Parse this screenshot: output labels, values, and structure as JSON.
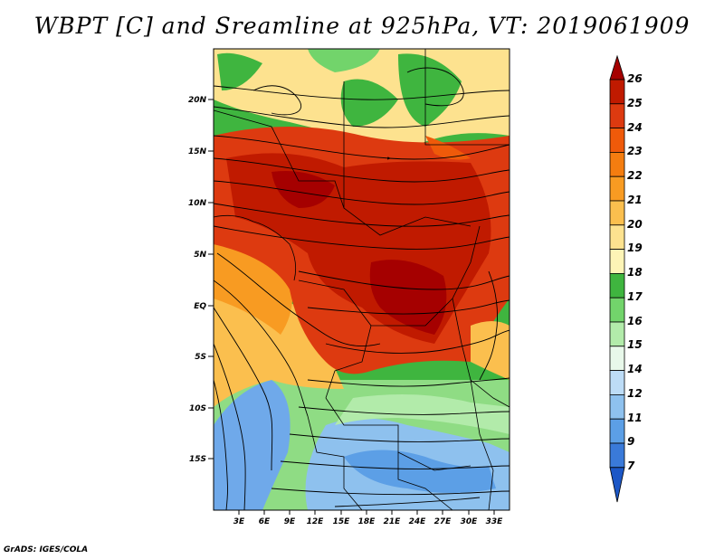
{
  "title": "WBPT [C] and Sreamline at 925hPa, VT: 2019061909",
  "credit": "GrADS: IGES/COLA",
  "lat_ticks": [
    "20N",
    "15N",
    "10N",
    "5N",
    "EQ",
    "5S",
    "10S",
    "15S"
  ],
  "lon_ticks": [
    "3E",
    "6E",
    "9E",
    "12E",
    "15E",
    "18E",
    "21E",
    "24E",
    "27E",
    "30E",
    "33E"
  ],
  "colorbar": {
    "levels": [
      "26",
      "25",
      "24",
      "23",
      "22",
      "21",
      "20",
      "19",
      "18",
      "17",
      "16",
      "15",
      "14",
      "12",
      "11",
      "9",
      "7"
    ],
    "colors": [
      "#a50000",
      "#c01a00",
      "#dd3a10",
      "#ef5a0a",
      "#f47d10",
      "#f89b22",
      "#fbbf4e",
      "#fde28f",
      "#fdf4b6",
      "#3fb53f",
      "#72d46b",
      "#b2ebaa",
      "#e8f8ea",
      "#bddcf6",
      "#8ec1ee",
      "#5c9fe6",
      "#3a7ad9",
      "#1c57c6"
    ]
  }
}
